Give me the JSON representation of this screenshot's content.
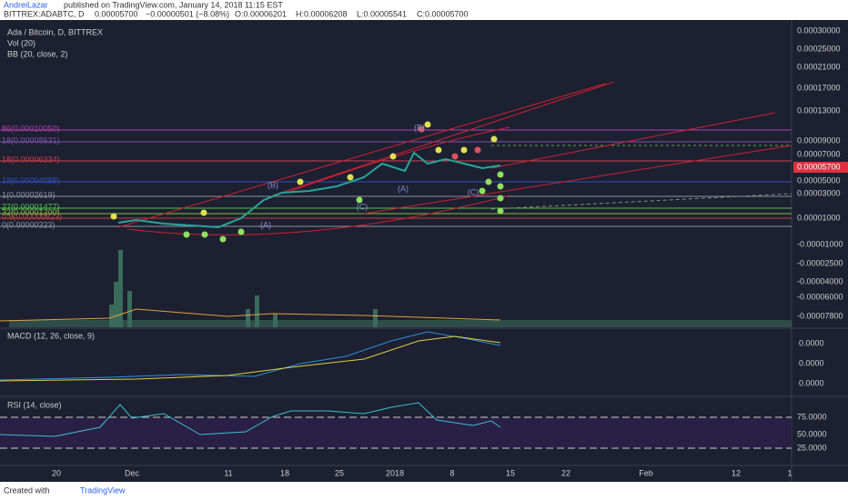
{
  "header": {
    "author": "AndreiLazar",
    "published": "published on TradingView.com, January 14, 2018 11:15 EST"
  },
  "quote": {
    "symbol": "BITTREX:ADABTC, D",
    "price": "0.00005700",
    "change": "−0.00000501 (−8.08%)",
    "open": "O:0.00006201",
    "high": "H:0.00006208",
    "low": "L:0.00005541",
    "close": "C:0.00005700"
  },
  "legend": [
    "Ada / Bitcoin, D, BITTREX",
    "Vol (20)",
    "BB (20, close, 2)"
  ],
  "price_axis": [
    "0.00030000",
    "0.00025000",
    "0.00021000",
    "0.00017000",
    "0.00013000",
    "0.00009000",
    "0.00007000",
    "0.00005000",
    "0.00003000",
    "0.00001000",
    "-0.00001000",
    "-0.00002500",
    "-0.00004000",
    "-0.00006000",
    "-0.00007800"
  ],
  "last_price": "0.00005700",
  "fib_levels": [
    "86(0.00010050)",
    "18(0.00008631)",
    "18(0.00006334)",
    "18(0.00004088)",
    "1(0.00002619)",
    "27(0.00001477)",
    "32(0.00001200)",
    "0.6(0.00000823)",
    "0(0.00000323)"
  ],
  "waves": [
    "(B)",
    "(A)",
    "(C)",
    "(A)",
    "(B)",
    "(C)"
  ],
  "macd": {
    "title": "MACD (12, 26, close, 9)",
    "axis": [
      "0.0000",
      "0.0000",
      "0.0000"
    ]
  },
  "rsi": {
    "title": "RSI (14, close)",
    "axis": [
      "75.0000",
      "50.0000",
      "25.0000"
    ]
  },
  "time_axis": [
    "20",
    "Dec",
    "11",
    "18",
    "25",
    "2018",
    "8",
    "15",
    "22",
    "Feb",
    "12",
    "1"
  ],
  "footer": {
    "created": "Created with",
    "brand": "TradingView"
  }
}
